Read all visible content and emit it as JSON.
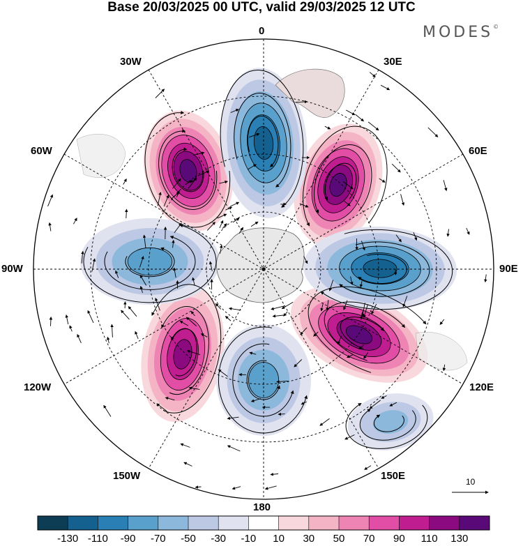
{
  "title": "Base 20/03/2025 00 UTC, valid 29/03/2025 12 UTC",
  "brand": "MODES",
  "brand_mark": "©",
  "longitude_labels": {
    "top": "0",
    "top_left": "30W",
    "top_right": "30E",
    "left_upper": "60W",
    "right_upper": "60E",
    "left": "90W",
    "right": "90E",
    "left_lower": "120W",
    "right_lower": "120E",
    "bottom_left": "150W",
    "bottom_right": "150E",
    "bottom": "180"
  },
  "reference_vector": "10",
  "colorbar": {
    "labels": [
      "-130",
      "-110",
      "-90",
      "-70",
      "-50",
      "-30",
      "-10",
      "10",
      "30",
      "50",
      "70",
      "90",
      "110",
      "130"
    ],
    "colors": [
      "#0d3c55",
      "#14608f",
      "#2a80b4",
      "#5aa0cc",
      "#8cb8dc",
      "#bcc8e4",
      "#e0e2f0",
      "#ffffff",
      "#f8d8dc",
      "#f4b4c6",
      "#ee84b4",
      "#e24ea6",
      "#c01e90",
      "#8c0a80",
      "#5a0a78"
    ]
  },
  "features": {
    "positive_anomalies": [
      {
        "name": "west-atlantic",
        "level": 7
      },
      {
        "name": "east-atlantic",
        "level": 7
      },
      {
        "name": "southwest-indian",
        "level": 7
      },
      {
        "name": "southeast-pacific",
        "level": 6
      }
    ],
    "negative_anomalies": [
      {
        "name": "south-atlantic",
        "level": -6
      },
      {
        "name": "west-pacific-90w",
        "level": -4
      },
      {
        "name": "east-indian-90e",
        "level": -6
      },
      {
        "name": "southwest-pacific",
        "level": -4
      },
      {
        "name": "tasman",
        "level": -3
      }
    ]
  }
}
